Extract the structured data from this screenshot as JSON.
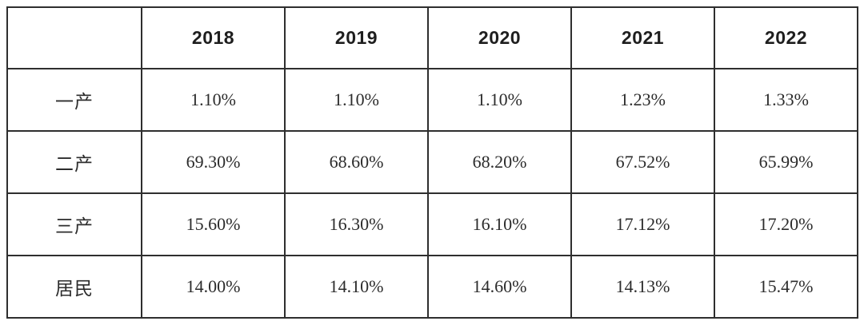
{
  "colors": {
    "background": "#ffffff",
    "border": "#2e2e2e",
    "header_text": "#1e1e1e",
    "body_text": "#2c2c2c"
  },
  "chart_data": {
    "type": "table",
    "title": "",
    "columns": [
      "",
      "2018",
      "2019",
      "2020",
      "2021",
      "2022"
    ],
    "rows": [
      {
        "label": "一产",
        "values": [
          "1.10%",
          "1.10%",
          "1.10%",
          "1.23%",
          "1.33%"
        ]
      },
      {
        "label": "二产",
        "values": [
          "69.30%",
          "68.60%",
          "68.20%",
          "67.52%",
          "65.99%"
        ]
      },
      {
        "label": "三产",
        "values": [
          "15.60%",
          "16.30%",
          "16.10%",
          "17.12%",
          "17.20%"
        ]
      },
      {
        "label": "居民",
        "values": [
          "14.00%",
          "14.10%",
          "14.60%",
          "14.13%",
          "15.47%"
        ]
      }
    ]
  }
}
